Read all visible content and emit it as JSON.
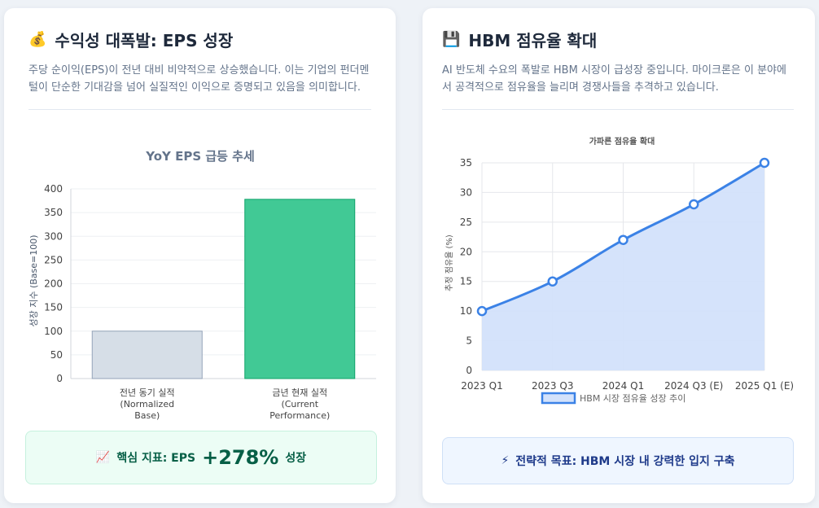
{
  "eps_card": {
    "icon": "💰",
    "title": "수익성 대폭발: EPS 성장",
    "description": "주당 순이익(EPS)이 전년 대비 비약적으로 상승했습니다. 이는 기업의 펀더멘털이 단순한 기대감을 넘어 실질적인 이익으로 증명되고 있음을 의미합니다.",
    "callout": {
      "icon": "📈",
      "prefix": "핵심 지표: EPS",
      "highlight": "+278%",
      "suffix": "성장",
      "bg_color": "#ecfdf5",
      "text_color": "#065f46"
    }
  },
  "hbm_card": {
    "icon": "💾",
    "title": "HBM 점유율 확대",
    "description": "AI 반도체 수요의 폭발로 HBM 시장이 급성장 중입니다. 마이크론은 이 분야에서 공격적으로 점유율을 늘리며 경쟁사들을 추격하고 있습니다.",
    "callout": {
      "icon": "⚡",
      "text": "전략적 목표: HBM 시장 내 강력한 입지 구축",
      "bg_color": "#eff6ff",
      "text_color": "#1e3a8a"
    }
  },
  "chart_data": [
    {
      "type": "bar",
      "title": "YoY EPS 급등 추세",
      "xlabel": "",
      "ylabel": "성장 지수 (Base=100)",
      "categories": [
        [
          "전년 동기 실적",
          "(Normalized",
          "Base)"
        ],
        [
          "금년 현재 실적",
          "(Current",
          "Performance)"
        ]
      ],
      "values": [
        100,
        378
      ],
      "colors": [
        "#d6dee7",
        "#41c995"
      ],
      "border_colors": [
        "#94a3b8",
        "#10a36a"
      ],
      "ylim": [
        0,
        400
      ],
      "yticks": [
        0,
        50,
        100,
        150,
        200,
        250,
        300,
        350,
        400
      ],
      "grid": true,
      "legend": "none"
    },
    {
      "type": "area",
      "title": "가파른 점유율 확대",
      "xlabel": "",
      "ylabel": "추정 점유율 (%)",
      "x": [
        "2023 Q1",
        "2023 Q3",
        "2024 Q1",
        "2024 Q3 (E)",
        "2025 Q1 (E)"
      ],
      "series": [
        {
          "name": "HBM 시장 점유율 성장 추이",
          "values": [
            10,
            15,
            22,
            28,
            35
          ],
          "color": "#3b82e6",
          "fill": "#d3e2fb"
        }
      ],
      "ylim": [
        0,
        35
      ],
      "yticks": [
        0,
        5,
        10,
        15,
        20,
        25,
        30,
        35
      ],
      "grid": true,
      "legend": "bottom"
    }
  ]
}
